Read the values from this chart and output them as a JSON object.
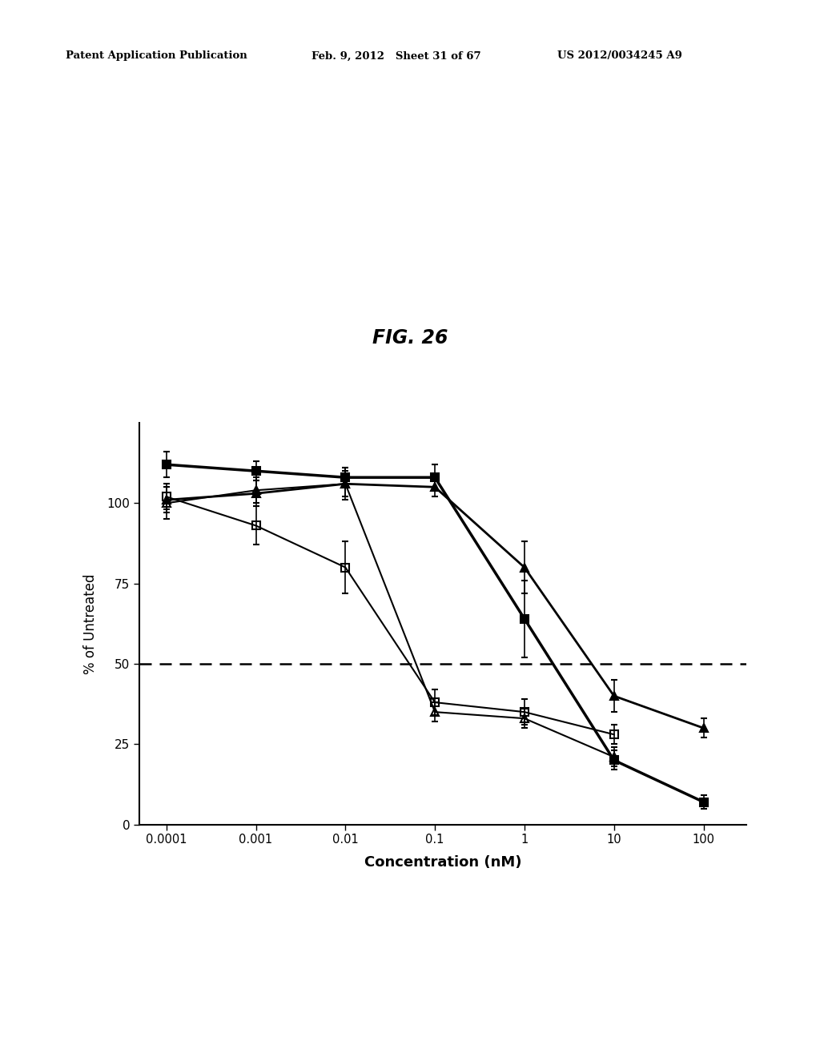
{
  "title": "FIG. 26",
  "xlabel": "Concentration (nM)",
  "ylabel": "% of Untreated",
  "header_left": "Patent Application Publication",
  "header_mid": "Feb. 9, 2012   Sheet 31 of 67",
  "header_right": "US 2012/0034245 A9",
  "x_values": [
    0.0001,
    0.001,
    0.01,
    0.1,
    1,
    10,
    100
  ],
  "series": [
    {
      "label": "filled_square",
      "y": [
        112,
        110,
        108,
        108,
        64,
        20,
        7
      ],
      "yerr": [
        4,
        3,
        3,
        4,
        12,
        3,
        2
      ],
      "marker": "s",
      "fillstyle": "full",
      "color": "#000000",
      "linewidth": 2.5,
      "markersize": 7
    },
    {
      "label": "open_square",
      "y": [
        102,
        93,
        80,
        38,
        35,
        28,
        null
      ],
      "yerr": [
        4,
        6,
        8,
        4,
        4,
        3,
        null
      ],
      "marker": "s",
      "fillstyle": "none",
      "color": "#000000",
      "linewidth": 1.5,
      "markersize": 7
    },
    {
      "label": "open_triangle",
      "y": [
        100,
        104,
        106,
        35,
        33,
        21,
        null
      ],
      "yerr": [
        5,
        4,
        5,
        3,
        3,
        3,
        null
      ],
      "marker": "^",
      "fillstyle": "none",
      "color": "#000000",
      "linewidth": 1.5,
      "markersize": 7
    },
    {
      "label": "filled_triangle",
      "y": [
        101,
        103,
        106,
        105,
        80,
        40,
        30
      ],
      "yerr": [
        4,
        4,
        4,
        3,
        8,
        5,
        3
      ],
      "marker": "^",
      "fillstyle": "full",
      "color": "#000000",
      "linewidth": 2.0,
      "markersize": 7
    }
  ],
  "ylim": [
    0,
    125
  ],
  "yticks": [
    0,
    25,
    50,
    75,
    100
  ],
  "dashed_line_y": 50,
  "background_color": "#ffffff",
  "plot_area_color": "#ffffff"
}
